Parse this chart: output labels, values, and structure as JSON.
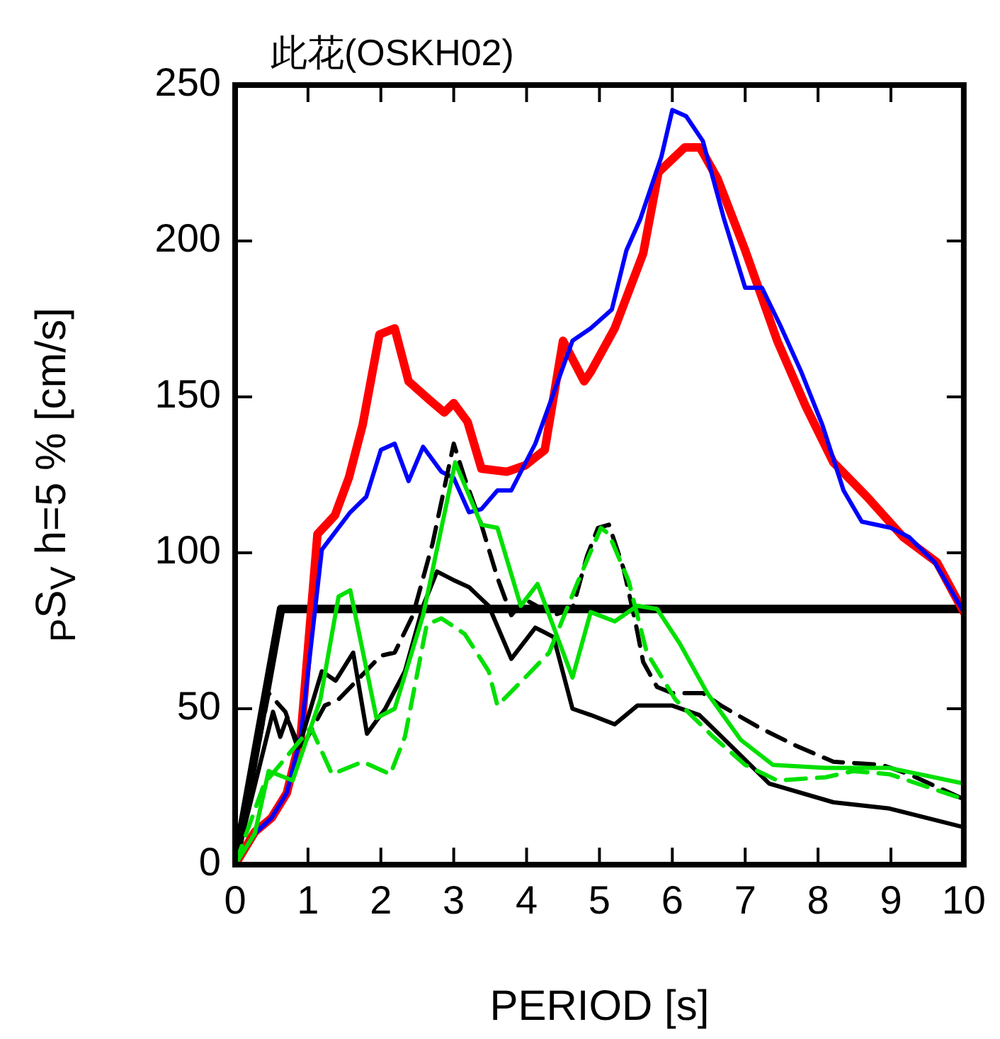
{
  "chart_data": {
    "type": "line",
    "title": "此花(OSKH02)",
    "xlabel": "PERIOD [s]",
    "ylabel": "$_{P}$S$_{V}$ h=5 % [cm/s]",
    "xlim": [
      0,
      10
    ],
    "xticks": [
      0,
      1,
      2,
      3,
      4,
      5,
      6,
      7,
      8,
      9,
      10
    ],
    "ylim": [
      0,
      250
    ],
    "yticks": [
      0,
      50,
      100,
      150,
      200,
      250
    ],
    "grid": false,
    "legend": false,
    "marker": "none",
    "series": [
      {
        "color": "#00e000",
        "line_style": "dashed",
        "x": [
          0,
          0.4,
          1.04,
          1.33,
          1.75,
          2.13,
          2.33,
          2.63,
          2.83,
          3.15,
          3.48,
          3.6,
          3.98,
          4.31,
          4.69,
          5.02,
          5.13,
          5.4,
          5.65,
          6.04,
          6.56,
          7.0,
          7.44,
          8.1,
          8.48,
          8.98,
          10
        ],
        "values": [
          0,
          26,
          44,
          29,
          33,
          29,
          41,
          77,
          79,
          74,
          62,
          51,
          60,
          68,
          90,
          108,
          106,
          91,
          68,
          53,
          41,
          32,
          27,
          28,
          30,
          29,
          21
        ]
      },
      {
        "color": "#00e000",
        "line_style": "solid",
        "x": [
          0,
          0.27,
          0.46,
          0.79,
          1.17,
          1.42,
          1.58,
          1.94,
          2.19,
          2.58,
          3.02,
          3.38,
          3.6,
          3.92,
          4.15,
          4.63,
          4.88,
          5.21,
          5.52,
          5.79,
          6.1,
          6.48,
          6.94,
          7.38,
          8.1,
          8.98,
          10
        ],
        "values": [
          0,
          10,
          30,
          27,
          53,
          86,
          88,
          47,
          50,
          80,
          129,
          109,
          108,
          83,
          90,
          60,
          81,
          78,
          83,
          82,
          71,
          55,
          40,
          32,
          31,
          31,
          26
        ]
      },
      {
        "color": "#000000",
        "line_style": "dashed",
        "x": [
          0,
          0.46,
          0.69,
          0.88,
          1.23,
          1.42,
          2.0,
          2.19,
          2.44,
          2.71,
          3.0,
          3.15,
          3.38,
          3.6,
          3.79,
          3.98,
          4.37,
          4.63,
          4.83,
          4.98,
          5.13,
          5.33,
          5.5,
          5.6,
          5.79,
          6.0,
          6.42,
          6.67,
          7.19,
          7.71,
          8.21,
          8.87,
          9.25,
          10
        ],
        "values": [
          0,
          55,
          49,
          36,
          51,
          53,
          67,
          68,
          80,
          103,
          135,
          124,
          109,
          92,
          80,
          85,
          80,
          82,
          99,
          108,
          109,
          95,
          77,
          65,
          57,
          55,
          55,
          51,
          44,
          38,
          33,
          32,
          29,
          21
        ]
      },
      {
        "color": "#000000",
        "line_style": "solid",
        "x": [
          0,
          0.52,
          0.62,
          0.71,
          0.88,
          1.19,
          1.38,
          1.62,
          1.81,
          2.06,
          2.33,
          2.58,
          2.77,
          3.02,
          3.21,
          3.48,
          3.79,
          4.12,
          4.37,
          4.63,
          4.88,
          5.21,
          5.52,
          6.0,
          6.37,
          6.81,
          7.33,
          8.21,
          8.98,
          10
        ],
        "values": [
          0,
          49,
          41,
          47,
          38,
          62,
          59,
          68,
          42,
          50,
          62,
          83,
          94,
          91,
          89,
          83,
          66,
          76,
          73,
          50,
          48,
          45,
          51,
          51,
          48,
          38,
          26,
          20,
          18,
          12
        ]
      },
      {
        "color": "#0000ff",
        "line_style": "solid",
        "x": [
          0,
          0.27,
          0.5,
          0.71,
          0.9,
          1.19,
          1.58,
          1.8,
          2.0,
          2.19,
          2.38,
          2.58,
          2.83,
          3.0,
          3.21,
          3.38,
          3.6,
          3.79,
          4.12,
          4.63,
          4.88,
          5.17,
          5.37,
          5.56,
          5.85,
          6.0,
          6.19,
          6.42,
          6.71,
          7.0,
          7.23,
          7.48,
          7.77,
          8.06,
          8.35,
          8.6,
          9.0,
          9.25,
          9.6,
          10
        ],
        "values": [
          0,
          10,
          15,
          23,
          41,
          101,
          113,
          118,
          133,
          135,
          123,
          134,
          126,
          124,
          113,
          114,
          120,
          120,
          135,
          168,
          172,
          178,
          197,
          207,
          227,
          242,
          240,
          232,
          207,
          185,
          185,
          173,
          158,
          141,
          120,
          110,
          108,
          105,
          97,
          81
        ]
      },
      {
        "color": "#ff0000",
        "line_style": "solid",
        "x": [
          0,
          0.27,
          0.5,
          0.71,
          0.9,
          1.13,
          1.37,
          1.56,
          1.75,
          1.98,
          2.19,
          2.38,
          2.67,
          2.87,
          3.0,
          3.19,
          3.38,
          3.73,
          3.98,
          4.25,
          4.5,
          4.79,
          4.88,
          5.21,
          5.6,
          5.81,
          6.17,
          6.38,
          6.62,
          7.0,
          7.44,
          7.83,
          8.21,
          8.67,
          9.17,
          9.63,
          10
        ],
        "values": [
          0,
          10.5,
          15,
          23,
          41,
          106,
          112,
          124,
          141,
          170,
          172,
          155,
          149,
          145,
          148,
          142,
          127,
          126,
          128,
          133,
          168,
          155,
          158,
          172,
          196,
          222,
          230,
          230,
          220,
          197,
          168,
          147,
          129,
          118,
          105,
          97,
          81
        ]
      },
      {
        "color": "#000000",
        "line_style": "solid",
        "x": [
          0,
          0.63,
          10
        ],
        "values": [
          0,
          82,
          82
        ]
      }
    ]
  }
}
